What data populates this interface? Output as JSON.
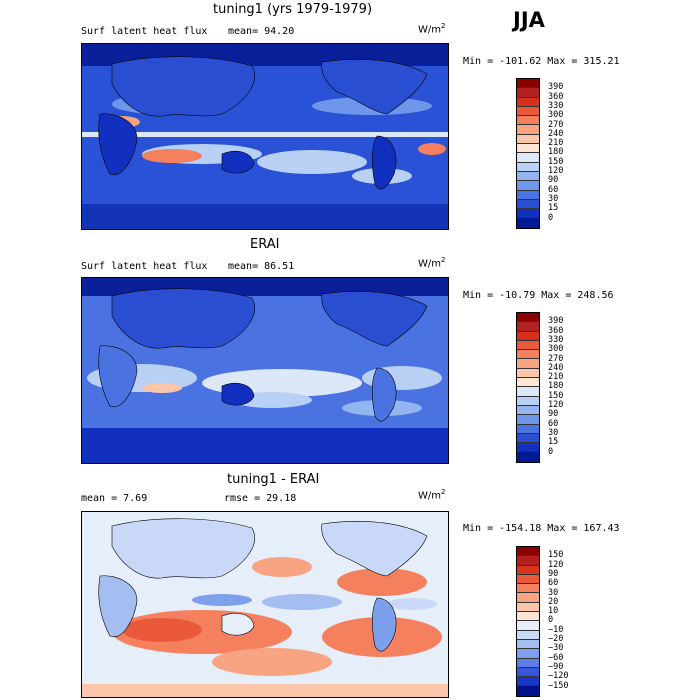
{
  "season": "JJA",
  "panels": [
    {
      "title": "tuning1 (yrs 1979-1979)",
      "left_label": "Surf latent heat flux",
      "right_label": "mean=  94.20",
      "unit_base": "W/m",
      "unit_exp": "2",
      "minmax": "Min = -101.62 Max = 315.21",
      "colorbar": {
        "labels": [
          "390",
          "360",
          "330",
          "300",
          "270",
          "240",
          "210",
          "180",
          "150",
          "120",
          "90",
          "60",
          "30",
          "15",
          "0"
        ],
        "colors": [
          "#8b0000",
          "#b22222",
          "#d83020",
          "#ea5a3a",
          "#f4805e",
          "#f8a482",
          "#fbc6aa",
          "#fde4d4",
          "#dce8f8",
          "#b8d0f4",
          "#94b6f0",
          "#6e96ea",
          "#4a72e0",
          "#2a4ed2",
          "#1230c0",
          "#001a96"
        ]
      }
    },
    {
      "title": "ERAI",
      "left_label": "Surf latent heat flux",
      "right_label": "mean=  86.51",
      "unit_base": "W/m",
      "unit_exp": "2",
      "minmax": "Min = -10.79 Max = 248.56",
      "colorbar": {
        "labels": [
          "390",
          "360",
          "330",
          "300",
          "270",
          "240",
          "210",
          "180",
          "150",
          "120",
          "90",
          "60",
          "30",
          "15",
          "0"
        ],
        "colors": [
          "#8b0000",
          "#b22222",
          "#d83020",
          "#ea5a3a",
          "#f4805e",
          "#f8a482",
          "#fbc6aa",
          "#fde4d4",
          "#dce8f8",
          "#b8d0f4",
          "#94b6f0",
          "#6e96ea",
          "#4a72e0",
          "#2a4ed2",
          "#1230c0",
          "#001a96"
        ]
      }
    },
    {
      "title": "tuning1 - ERAI",
      "left_label": "mean =   7.69",
      "right_label": "rmse =  29.18",
      "unit_base": "W/m",
      "unit_exp": "2",
      "minmax": "Min = -154.18 Max = 167.43",
      "colorbar": {
        "labels": [
          "150",
          "120",
          "90",
          "60",
          "30",
          "20",
          "10",
          "0",
          "−10",
          "−20",
          "−30",
          "−60",
          "−90",
          "−120",
          "−150"
        ],
        "colors": [
          "#8b0000",
          "#b51e1e",
          "#d8341e",
          "#ea5a3a",
          "#f4805e",
          "#f8a482",
          "#fbc6aa",
          "#fde4d4",
          "#e6eefa",
          "#c8d8f6",
          "#a4bef2",
          "#7ea0ec",
          "#5a7ee4",
          "#3658d8",
          "#1a36c4",
          "#00118a"
        ]
      }
    }
  ]
}
